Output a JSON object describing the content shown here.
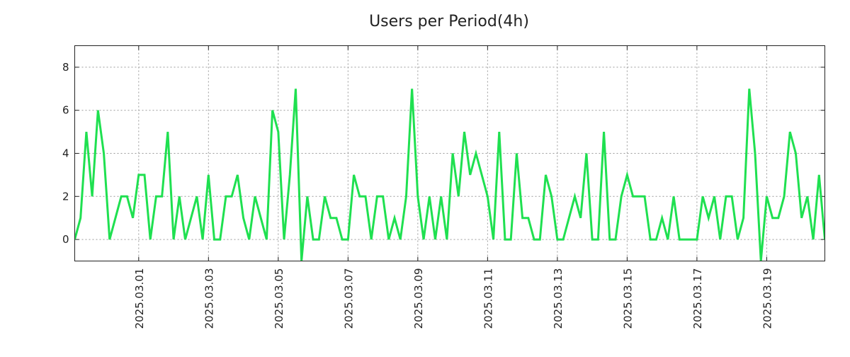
{
  "chart_data": {
    "type": "line",
    "title": "Users per Period(4h)",
    "xlabel": "",
    "ylabel": "",
    "ylim": [
      -1,
      9
    ],
    "yticks": [
      0,
      2,
      4,
      6,
      8
    ],
    "grid": true,
    "xtick_labels": [
      "2025.03.01",
      "2025.03.03",
      "2025.03.05",
      "2025.03.07",
      "2025.03.09",
      "2025.03.11",
      "2025.03.13",
      "2025.03.15",
      "2025.03.17",
      "2025.03.19"
    ],
    "xtick_index": [
      11,
      23,
      35,
      47,
      59,
      71,
      83,
      95,
      107,
      119
    ],
    "series": [
      {
        "name": "Users",
        "color": "#1fe050",
        "values": [
          0,
          1,
          5,
          2,
          6,
          4,
          0,
          1,
          2,
          2,
          1,
          3,
          3,
          0,
          2,
          2,
          5,
          0,
          2,
          0,
          1,
          2,
          0,
          3,
          0,
          0,
          2,
          2,
          3,
          1,
          0,
          2,
          1,
          0,
          6,
          5,
          0,
          3,
          7,
          -1,
          2,
          0,
          0,
          2,
          1,
          1,
          0,
          0,
          3,
          2,
          2,
          0,
          2,
          2,
          0,
          1,
          0,
          2,
          7,
          2,
          0,
          2,
          0,
          2,
          0,
          4,
          2,
          5,
          3,
          4,
          3,
          2,
          0,
          5,
          0,
          0,
          4,
          1,
          1,
          0,
          0,
          3,
          2,
          0,
          0,
          1,
          2,
          1,
          4,
          0,
          0,
          5,
          0,
          0,
          2,
          3,
          2,
          2,
          2,
          0,
          0,
          1,
          0,
          2,
          0,
          0,
          0,
          0,
          2,
          1,
          2,
          0,
          2,
          2,
          0,
          1,
          7,
          4,
          -1,
          2,
          1,
          1,
          2,
          5,
          4,
          1,
          2,
          0,
          3,
          0
        ]
      }
    ]
  }
}
